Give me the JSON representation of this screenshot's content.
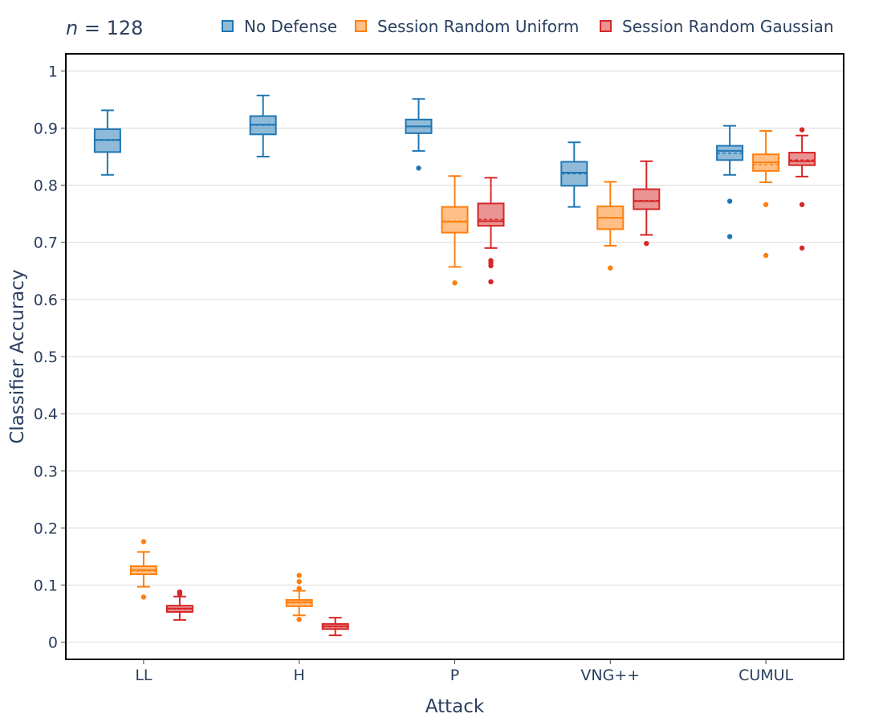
{
  "chart_data": {
    "type": "box",
    "annotation": {
      "italic": "n",
      "rest": " = 128"
    },
    "xlabel": "Attack",
    "ylabel": "Classifier Accuracy",
    "categories": [
      "LL",
      "H",
      "P",
      "VNG++",
      "CUMUL"
    ],
    "ylim": [
      -0.03,
      1.03
    ],
    "yticks": [
      0,
      0.1,
      0.2,
      0.3,
      0.4,
      0.5,
      0.6,
      0.7,
      0.8,
      0.9,
      1
    ],
    "ytick_labels": [
      "0",
      "0.1",
      "0.2",
      "0.3",
      "0.4",
      "0.5",
      "0.6",
      "0.7",
      "0.8",
      "0.9",
      "1"
    ],
    "grid": true,
    "legend_position": "top-right",
    "series": [
      {
        "name": "No Defense",
        "color": "#1f77b4",
        "boxes": [
          {
            "category": "LL",
            "whisker_low": 0.818,
            "q1": 0.858,
            "median": 0.879,
            "mean": 0.88,
            "q3": 0.898,
            "whisker_high": 0.931,
            "outliers": []
          },
          {
            "category": "H",
            "whisker_low": 0.85,
            "q1": 0.889,
            "median": 0.906,
            "mean": 0.905,
            "q3": 0.921,
            "whisker_high": 0.957,
            "outliers": []
          },
          {
            "category": "P",
            "whisker_low": 0.86,
            "q1": 0.891,
            "median": 0.903,
            "mean": 0.903,
            "q3": 0.915,
            "whisker_high": 0.951,
            "outliers": [
              0.83
            ]
          },
          {
            "category": "VNG++",
            "whisker_low": 0.762,
            "q1": 0.799,
            "median": 0.822,
            "mean": 0.82,
            "q3": 0.841,
            "whisker_high": 0.875,
            "outliers": []
          },
          {
            "category": "CUMUL",
            "whisker_low": 0.818,
            "q1": 0.844,
            "median": 0.86,
            "mean": 0.856,
            "q3": 0.869,
            "whisker_high": 0.904,
            "outliers": [
              0.772,
              0.71
            ]
          }
        ]
      },
      {
        "name": "Session Random Uniform",
        "color": "#ff7f0e",
        "boxes": [
          {
            "category": "LL",
            "whisker_low": 0.097,
            "q1": 0.119,
            "median": 0.126,
            "mean": 0.125,
            "q3": 0.133,
            "whisker_high": 0.158,
            "outliers": [
              0.176,
              0.079
            ]
          },
          {
            "category": "H",
            "whisker_low": 0.047,
            "q1": 0.063,
            "median": 0.07,
            "mean": 0.069,
            "q3": 0.074,
            "whisker_high": 0.09,
            "outliers": [
              0.117,
              0.106,
              0.094,
              0.04
            ]
          },
          {
            "category": "P",
            "whisker_low": 0.657,
            "q1": 0.717,
            "median": 0.736,
            "mean": 0.737,
            "q3": 0.762,
            "whisker_high": 0.816,
            "outliers": [
              0.629
            ]
          },
          {
            "category": "VNG++",
            "whisker_low": 0.694,
            "q1": 0.723,
            "median": 0.743,
            "mean": 0.743,
            "q3": 0.763,
            "whisker_high": 0.806,
            "outliers": [
              0.655
            ]
          },
          {
            "category": "CUMUL",
            "whisker_low": 0.805,
            "q1": 0.825,
            "median": 0.84,
            "mean": 0.836,
            "q3": 0.854,
            "whisker_high": 0.895,
            "outliers": [
              0.766,
              0.677
            ]
          }
        ]
      },
      {
        "name": "Session Random Gaussian",
        "color": "#d62728",
        "boxes": [
          {
            "category": "LL",
            "whisker_low": 0.039,
            "q1": 0.053,
            "median": 0.059,
            "mean": 0.058,
            "q3": 0.064,
            "whisker_high": 0.08,
            "outliers": [
              0.088,
              0.086,
              0.084
            ]
          },
          {
            "category": "H",
            "whisker_low": 0.012,
            "q1": 0.023,
            "median": 0.028,
            "mean": 0.027,
            "q3": 0.032,
            "whisker_high": 0.043,
            "outliers": []
          },
          {
            "category": "P",
            "whisker_low": 0.69,
            "q1": 0.729,
            "median": 0.737,
            "mean": 0.74,
            "q3": 0.768,
            "whisker_high": 0.813,
            "outliers": [
              0.668,
              0.664,
              0.659,
              0.631
            ]
          },
          {
            "category": "VNG++",
            "whisker_low": 0.713,
            "q1": 0.758,
            "median": 0.772,
            "mean": 0.773,
            "q3": 0.793,
            "whisker_high": 0.842,
            "outliers": [
              0.698
            ]
          },
          {
            "category": "CUMUL",
            "whisker_low": 0.815,
            "q1": 0.835,
            "median": 0.842,
            "mean": 0.844,
            "q3": 0.857,
            "whisker_high": 0.887,
            "outliers": [
              0.897,
              0.766,
              0.69
            ]
          }
        ]
      }
    ]
  }
}
